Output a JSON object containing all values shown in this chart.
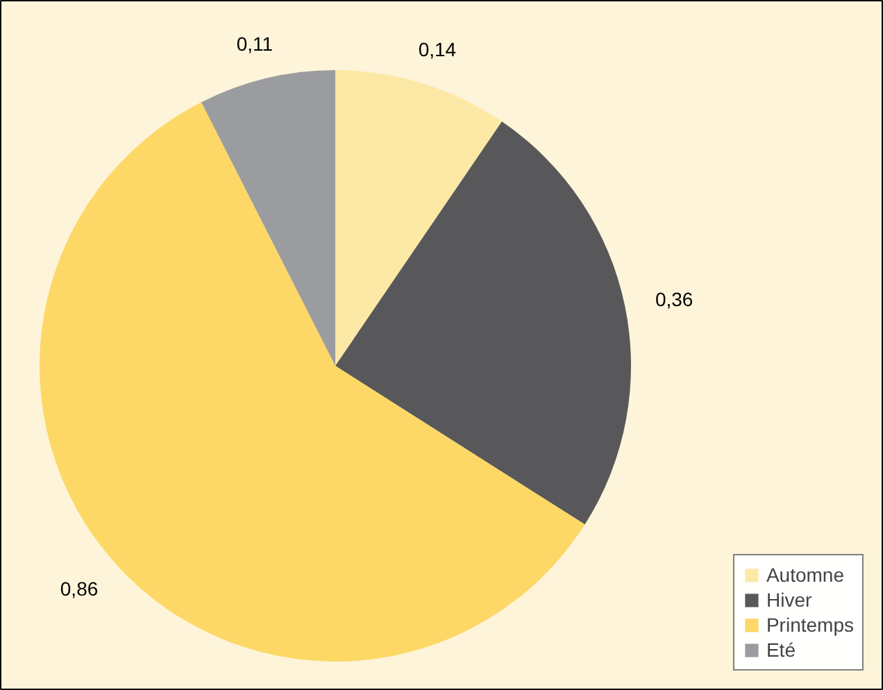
{
  "chart_data": {
    "type": "pie",
    "categories": [
      "Automne",
      "Hiver",
      "Printemps",
      "Eté"
    ],
    "values": [
      0.14,
      0.36,
      0.86,
      0.11
    ],
    "colors": [
      "#fde9a6",
      "#58585a",
      "#fdd866",
      "#9b9c9f"
    ],
    "value_labels": [
      "0,14",
      "0,36",
      "0,86",
      "0,11"
    ],
    "legend": "bottom right"
  }
}
